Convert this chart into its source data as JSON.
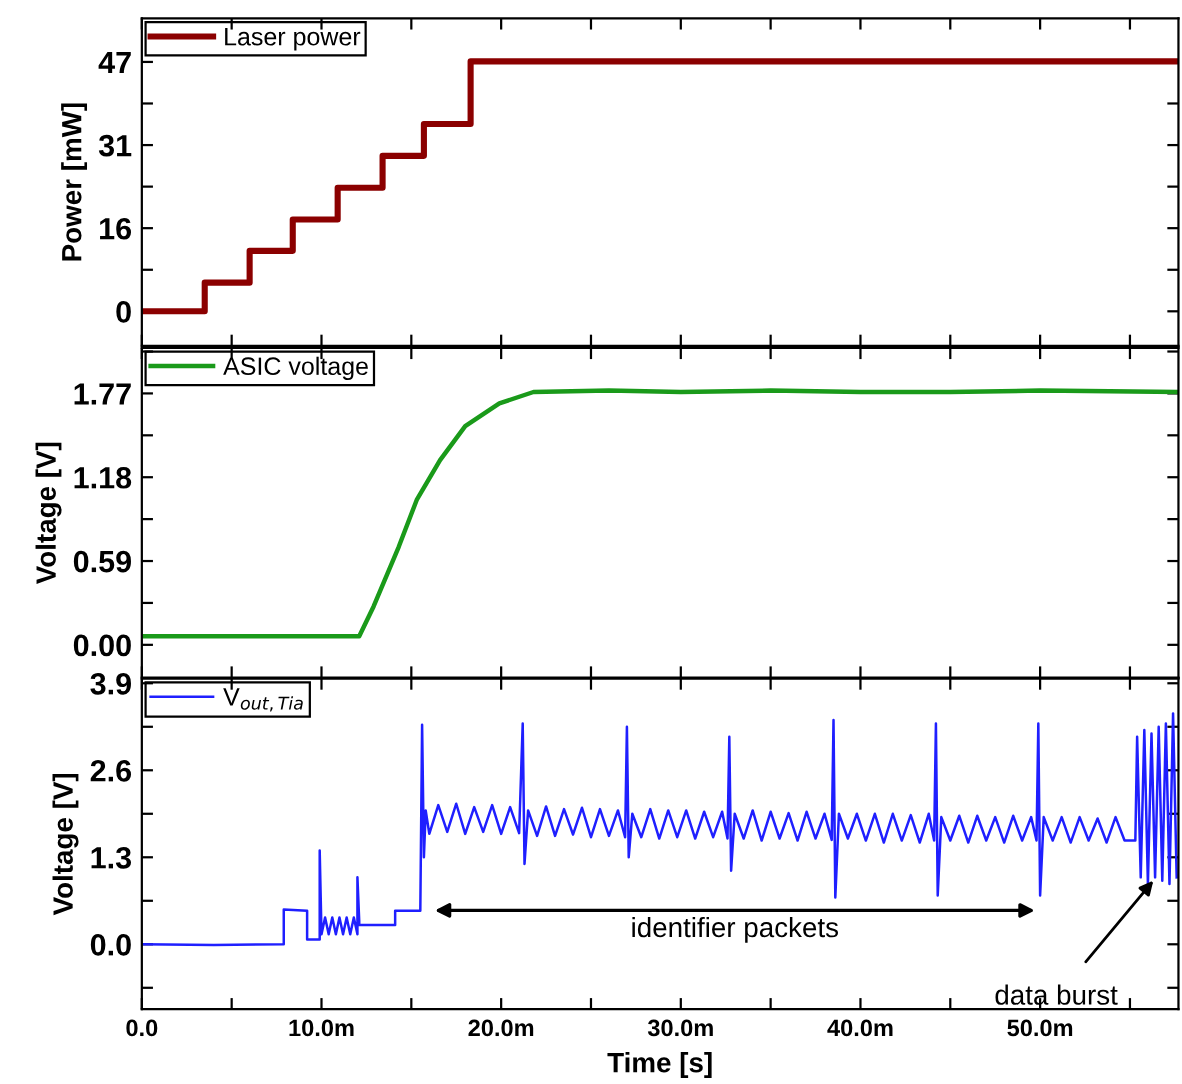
{
  "chart_data": [
    {
      "type": "step",
      "xlim": [
        0,
        57.7
      ],
      "ylim": [
        -6.5,
        55.2
      ],
      "ylabel": "Power [mW]",
      "tick_labels": "y",
      "legend": "top left",
      "yticks": [
        0,
        {
          "value": 7.83,
          "label": null
        },
        {
          "value": 15.67,
          "label": "16"
        },
        {
          "value": 23.5,
          "label": null
        },
        {
          "value": 31.33,
          "label": "31"
        },
        {
          "value": 39.17,
          "label": null
        },
        47
      ],
      "series": [
        {
          "name": "Laser power",
          "color": "#8b0000",
          "x": [
            0,
            3.5,
            6.0,
            8.4,
            10.9,
            13.4,
            15.7,
            18.3,
            57.7
          ],
          "values": [
            0,
            5.4,
            11.4,
            17.3,
            23.3,
            29.3,
            35.3,
            47.1,
            47.1
          ]
        }
      ]
    },
    {
      "type": "line",
      "xlim": [
        0,
        57.7
      ],
      "ylim": [
        -0.23,
        2.09
      ],
      "ylabel": "Voltage [V]",
      "tick_labels": "y",
      "legend": "top left",
      "yticks": [
        {
          "value": 0,
          "label": "0.00"
        },
        {
          "value": 0.295,
          "label": null
        },
        0.59,
        {
          "value": 0.885,
          "label": null
        },
        1.18,
        {
          "value": 1.475,
          "label": null
        },
        1.77,
        {
          "value": 2.065,
          "label": null
        }
      ],
      "series": [
        {
          "name": "ASIC voltage",
          "color": "#1a9a1a",
          "x": [
            0,
            4,
            8,
            12.1,
            12.9,
            14.3,
            15.3,
            16.6,
            18.0,
            19.9,
            21.8,
            26,
            30,
            35,
            40,
            45,
            50,
            57.7
          ],
          "values": [
            0.06,
            0.06,
            0.06,
            0.06,
            0.27,
            0.69,
            1.02,
            1.3,
            1.54,
            1.7,
            1.78,
            1.79,
            1.78,
            1.79,
            1.78,
            1.78,
            1.79,
            1.78
          ]
        }
      ]
    },
    {
      "type": "line",
      "xlim": [
        0,
        57.7
      ],
      "ylim": [
        -0.97,
        3.97
      ],
      "ylabel": "Voltage [V]",
      "xlabel": "Time [s]",
      "legend": "top left",
      "xticks": [
        {
          "value": 0,
          "label": "0.0"
        },
        {
          "value": 5,
          "label": null
        },
        {
          "value": 10,
          "label": "10.0m"
        },
        {
          "value": 15,
          "label": null
        },
        {
          "value": 20,
          "label": "20.0m"
        },
        {
          "value": 25,
          "label": null
        },
        {
          "value": 30,
          "label": "30.0m"
        },
        {
          "value": 35,
          "label": null
        },
        {
          "value": 40,
          "label": "40.0m"
        },
        {
          "value": 45,
          "label": null
        },
        {
          "value": 50,
          "label": "50.0m"
        },
        {
          "value": 55,
          "label": null
        }
      ],
      "yticks": [
        {
          "value": -0.65,
          "label": null
        },
        {
          "value": 0,
          "label": "0.0"
        },
        {
          "value": 0.65,
          "label": null
        },
        1.3,
        {
          "value": 1.95,
          "label": null
        },
        2.6,
        {
          "value": 3.25,
          "label": null
        },
        3.9
      ],
      "annotations": [
        "identifier packets",
        {
          "text": "data burst",
          "x": 56.3,
          "y": 0.95
        }
      ],
      "series": [
        {
          "name": "V$_{out,Tia}$",
          "color": "#1f1fff",
          "x": [
            0,
            4,
            7.9,
            7.9,
            9.2,
            9.2,
            9.9,
            9.9,
            10.0,
            10.2,
            10.4,
            10.6,
            10.8,
            11.0,
            11.2,
            11.4,
            11.6,
            11.8,
            12.0,
            12.0,
            12.1,
            12.1,
            14.1,
            14.1,
            15.5,
            15.6,
            15.7,
            15.8,
            16.0,
            16.5,
            17.0,
            17.5,
            18.0,
            18.5,
            19.0,
            19.5,
            20.0,
            20.5,
            21.0,
            21.2,
            21.3,
            21.5,
            22.0,
            22.5,
            23.0,
            23.5,
            24.0,
            24.5,
            25.0,
            25.5,
            26.0,
            26.5,
            26.9,
            27.0,
            27.1,
            27.3,
            27.8,
            28.3,
            28.8,
            29.3,
            29.8,
            30.3,
            30.8,
            31.3,
            31.8,
            32.3,
            32.6,
            32.7,
            32.8,
            33.0,
            33.5,
            34.0,
            34.5,
            35.0,
            35.5,
            36.0,
            36.5,
            37.0,
            37.5,
            38.0,
            38.4,
            38.5,
            38.6,
            38.8,
            39.3,
            39.8,
            40.3,
            40.8,
            41.3,
            41.8,
            42.3,
            42.8,
            43.3,
            43.8,
            44.1,
            44.2,
            44.3,
            44.5,
            45.0,
            45.5,
            46.0,
            46.5,
            47.0,
            47.5,
            48.0,
            48.5,
            49.0,
            49.5,
            49.8,
            49.9,
            50.0,
            50.2,
            50.7,
            51.2,
            51.7,
            52.2,
            52.7,
            53.2,
            53.7,
            54.2,
            54.7,
            55.3,
            55.4,
            55.6,
            55.8,
            56.0,
            56.2,
            56.4,
            56.6,
            56.8,
            57.0,
            57.2,
            57.4,
            57.6
          ],
          "values": [
            0,
            -0.01,
            0,
            0.52,
            0.5,
            0.07,
            0.07,
            1.4,
            0.15,
            0.4,
            0.15,
            0.4,
            0.15,
            0.4,
            0.15,
            0.4,
            0.15,
            0.4,
            0.15,
            1.0,
            0.35,
            0.29,
            0.29,
            0.5,
            0.5,
            3.28,
            1.3,
            2.0,
            1.65,
            2.08,
            1.68,
            2.1,
            1.65,
            2.05,
            1.68,
            2.08,
            1.65,
            2.05,
            1.66,
            3.3,
            1.2,
            2.0,
            1.62,
            2.06,
            1.62,
            2.02,
            1.64,
            2.04,
            1.6,
            2.02,
            1.62,
            2.0,
            1.6,
            3.25,
            1.3,
            1.95,
            1.6,
            2.02,
            1.58,
            2.0,
            1.6,
            2.0,
            1.58,
            1.98,
            1.6,
            1.98,
            1.58,
            3.1,
            1.1,
            1.95,
            1.58,
            2.0,
            1.55,
            1.98,
            1.58,
            1.96,
            1.55,
            1.98,
            1.58,
            1.95,
            1.56,
            3.35,
            0.7,
            1.95,
            1.58,
            1.95,
            1.55,
            1.95,
            1.52,
            1.95,
            1.55,
            1.93,
            1.52,
            1.95,
            1.55,
            3.3,
            0.73,
            1.9,
            1.55,
            1.92,
            1.52,
            1.92,
            1.55,
            1.9,
            1.52,
            1.92,
            1.55,
            1.9,
            1.55,
            3.3,
            0.73,
            1.9,
            1.55,
            1.9,
            1.52,
            1.9,
            1.55,
            1.88,
            1.52,
            1.9,
            1.55,
            1.55,
            3.1,
            1.0,
            3.2,
            0.9,
            3.15,
            1.0,
            3.25,
            0.95,
            3.3,
            0.9,
            3.45,
            1.0
          ]
        }
      ]
    }
  ]
}
